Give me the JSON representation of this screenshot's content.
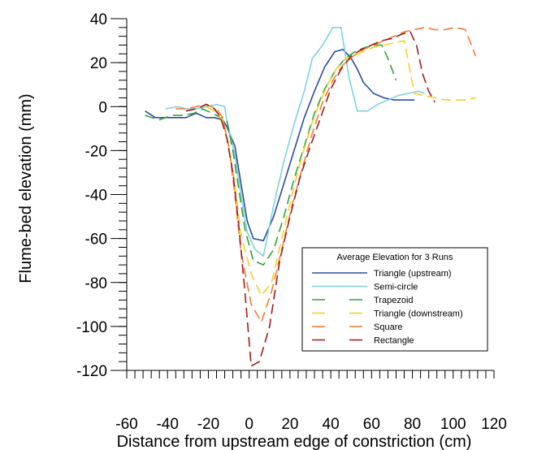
{
  "chart_data": {
    "type": "line",
    "title": "",
    "xlabel": "Distance from upstream edge of constriction  (cm)",
    "ylabel": "Flume-bed elevation (mm)",
    "xlim": [
      -60,
      120
    ],
    "ylim": [
      -120,
      40
    ],
    "x_ticks": [
      -60,
      -40,
      -20,
      0,
      20,
      40,
      60,
      80,
      100,
      120
    ],
    "y_ticks": [
      40,
      20,
      0,
      -20,
      -40,
      -60,
      -80,
      -100,
      -120
    ],
    "x_minor_step": 4,
    "y_minor_step": 4,
    "grid": false,
    "legend": {
      "title": "Average Elevation for 3 Runs",
      "placement": "bottom-right"
    },
    "series": [
      {
        "name": "Triangle (upstream)",
        "color": "#2e4a9e",
        "style": "solid",
        "points": [
          [
            -51,
            -2
          ],
          [
            -46,
            -5
          ],
          [
            -42,
            -5
          ],
          [
            -36,
            -5
          ],
          [
            -31,
            -5
          ],
          [
            -26,
            -3
          ],
          [
            -21,
            -5
          ],
          [
            -17,
            -5
          ],
          [
            -13,
            -6
          ],
          [
            -11,
            -9
          ],
          [
            -7,
            -18
          ],
          [
            -4,
            -35
          ],
          [
            -1,
            -52
          ],
          [
            2,
            -60
          ],
          [
            7,
            -61
          ],
          [
            12,
            -50
          ],
          [
            17,
            -35
          ],
          [
            22,
            -20
          ],
          [
            27,
            -5
          ],
          [
            32,
            7
          ],
          [
            37,
            18
          ],
          [
            42,
            25
          ],
          [
            46,
            26
          ],
          [
            50,
            22
          ],
          [
            53,
            17
          ],
          [
            56,
            11
          ],
          [
            61,
            6
          ],
          [
            66,
            4
          ],
          [
            71,
            3
          ],
          [
            76,
            3
          ],
          [
            81,
            3
          ]
        ]
      },
      {
        "name": "Semi-circle",
        "color": "#7fd3dc",
        "style": "solid",
        "points": [
          [
            -41,
            -1
          ],
          [
            -35,
            0
          ],
          [
            -31,
            -1
          ],
          [
            -26,
            -1
          ],
          [
            -21,
            0
          ],
          [
            -16,
            1
          ],
          [
            -12,
            0
          ],
          [
            -11,
            -6
          ],
          [
            -7,
            -22
          ],
          [
            -4,
            -40
          ],
          [
            -1,
            -57
          ],
          [
            3,
            -65
          ],
          [
            7,
            -68
          ],
          [
            12,
            -45
          ],
          [
            17,
            -25
          ],
          [
            22,
            -8
          ],
          [
            27,
            7
          ],
          [
            31,
            22
          ],
          [
            36,
            28
          ],
          [
            41,
            36
          ],
          [
            45,
            36
          ],
          [
            49,
            13
          ],
          [
            53,
            -2
          ],
          [
            58,
            -2
          ],
          [
            63,
            1
          ],
          [
            68,
            3
          ],
          [
            73,
            5
          ],
          [
            78,
            6
          ],
          [
            83,
            7
          ],
          [
            86,
            6
          ]
        ]
      },
      {
        "name": "Trapezoid",
        "color": "#2ca53a",
        "style": "long-dash",
        "points": [
          [
            -51,
            -4
          ],
          [
            -44,
            -6
          ],
          [
            -38,
            -4
          ],
          [
            -33,
            -4
          ],
          [
            -27,
            -3
          ],
          [
            -23,
            -1
          ],
          [
            -18,
            -3
          ],
          [
            -14,
            -5
          ],
          [
            -11,
            -6
          ],
          [
            -8,
            -20
          ],
          [
            -5,
            -38
          ],
          [
            -2,
            -56
          ],
          [
            2,
            -70
          ],
          [
            7,
            -72
          ],
          [
            12,
            -65
          ],
          [
            17,
            -50
          ],
          [
            22,
            -33
          ],
          [
            27,
            -18
          ],
          [
            32,
            -3
          ],
          [
            37,
            8
          ],
          [
            42,
            16
          ],
          [
            47,
            22
          ],
          [
            52,
            25
          ],
          [
            57,
            27
          ],
          [
            62,
            28
          ],
          [
            65,
            28
          ],
          [
            68,
            22
          ],
          [
            72,
            12
          ]
        ]
      },
      {
        "name": "Triangle (downstream)",
        "color": "#f2cf2c",
        "style": "long-dash",
        "points": [
          [
            -21,
            0
          ],
          [
            -17,
            -2
          ],
          [
            -13,
            -6
          ],
          [
            -10,
            -18
          ],
          [
            -7,
            -35
          ],
          [
            -4,
            -58
          ],
          [
            1,
            -76
          ],
          [
            6,
            -86
          ],
          [
            11,
            -80
          ],
          [
            16,
            -60
          ],
          [
            21,
            -40
          ],
          [
            26,
            -22
          ],
          [
            31,
            -7
          ],
          [
            36,
            5
          ],
          [
            41,
            15
          ],
          [
            46,
            21
          ],
          [
            51,
            23
          ],
          [
            56,
            25
          ],
          [
            61,
            27
          ],
          [
            66,
            28
          ],
          [
            71,
            29
          ],
          [
            76,
            30
          ],
          [
            81,
            6
          ],
          [
            86,
            5
          ],
          [
            91,
            4
          ],
          [
            96,
            3
          ],
          [
            101,
            3
          ],
          [
            106,
            3
          ],
          [
            111,
            4
          ]
        ]
      },
      {
        "name": "Square",
        "color": "#f47a30",
        "style": "long-dash",
        "points": [
          [
            -36,
            -1
          ],
          [
            -31,
            -1
          ],
          [
            -26,
            0
          ],
          [
            -21,
            1
          ],
          [
            -16,
            -1
          ],
          [
            -13,
            -5
          ],
          [
            -10,
            -18
          ],
          [
            -7,
            -40
          ],
          [
            -4,
            -66
          ],
          [
            1,
            -90
          ],
          [
            6,
            -98
          ],
          [
            11,
            -84
          ],
          [
            16,
            -65
          ],
          [
            21,
            -45
          ],
          [
            26,
            -28
          ],
          [
            31,
            -12
          ],
          [
            36,
            2
          ],
          [
            41,
            12
          ],
          [
            46,
            19
          ],
          [
            51,
            23
          ],
          [
            56,
            26
          ],
          [
            61,
            28
          ],
          [
            66,
            30
          ],
          [
            71,
            32
          ],
          [
            76,
            34
          ],
          [
            81,
            35
          ],
          [
            86,
            36
          ],
          [
            91,
            35
          ],
          [
            96,
            35
          ],
          [
            101,
            36
          ],
          [
            106,
            35
          ],
          [
            111,
            23
          ]
        ]
      },
      {
        "name": "Rectangle",
        "color": "#9e1c1c",
        "style": "long-dash",
        "points": [
          [
            -31,
            -2
          ],
          [
            -26,
            -1
          ],
          [
            -21,
            1
          ],
          [
            -17,
            -1
          ],
          [
            -14,
            -5
          ],
          [
            -11,
            -14
          ],
          [
            -8,
            -30
          ],
          [
            -5,
            -55
          ],
          [
            -2,
            -85
          ],
          [
            1,
            -118
          ],
          [
            5,
            -116
          ],
          [
            10,
            -100
          ],
          [
            15,
            -70
          ],
          [
            20,
            -50
          ],
          [
            25,
            -32
          ],
          [
            30,
            -18
          ],
          [
            35,
            -5
          ],
          [
            40,
            8
          ],
          [
            45,
            17
          ],
          [
            50,
            23
          ],
          [
            55,
            26
          ],
          [
            60,
            28
          ],
          [
            65,
            30
          ],
          [
            70,
            31
          ],
          [
            75,
            33
          ],
          [
            79,
            34
          ],
          [
            82,
            28
          ],
          [
            85,
            15
          ],
          [
            88,
            7
          ],
          [
            91,
            2
          ]
        ]
      }
    ]
  }
}
